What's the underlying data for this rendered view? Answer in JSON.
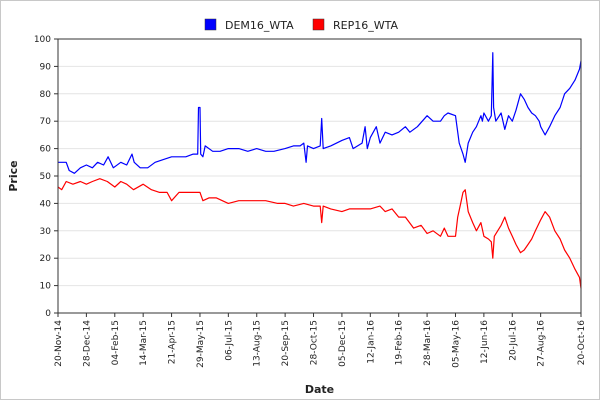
{
  "chart_data": {
    "type": "line",
    "title": "",
    "xlabel": "Date",
    "ylabel": "Price",
    "ylim": [
      0,
      100
    ],
    "yticks": [
      0,
      10,
      20,
      30,
      40,
      50,
      60,
      70,
      80,
      90,
      100
    ],
    "xlim": [
      "2014-11-20",
      "2016-10-20"
    ],
    "xticks": [
      {
        "date": "2014-11-20",
        "label": "20-Nov-14"
      },
      {
        "date": "2014-12-28",
        "label": "28-Dec-14"
      },
      {
        "date": "2015-02-04",
        "label": "04-Feb-15"
      },
      {
        "date": "2015-03-14",
        "label": "14-Mar-15"
      },
      {
        "date": "2015-04-21",
        "label": "21-Apr-15"
      },
      {
        "date": "2015-05-29",
        "label": "29-May-15"
      },
      {
        "date": "2015-07-06",
        "label": "06-Jul-15"
      },
      {
        "date": "2015-08-13",
        "label": "13-Aug-15"
      },
      {
        "date": "2015-09-20",
        "label": "20-Sep-15"
      },
      {
        "date": "2015-10-28",
        "label": "28-Oct-15"
      },
      {
        "date": "2015-12-05",
        "label": "05-Dec-15"
      },
      {
        "date": "2016-01-12",
        "label": "12-Jan-16"
      },
      {
        "date": "2016-02-19",
        "label": "19-Feb-16"
      },
      {
        "date": "2016-03-28",
        "label": "28-Mar-16"
      },
      {
        "date": "2016-05-05",
        "label": "05-May-16"
      },
      {
        "date": "2016-06-12",
        "label": "12-Jun-16"
      },
      {
        "date": "2016-07-20",
        "label": "20-Jul-16"
      },
      {
        "date": "2016-08-27",
        "label": "27-Aug-16"
      },
      {
        "date": "2016-10-20",
        "label": "20-Oct-16"
      }
    ],
    "grid": {
      "horizontal": true,
      "vertical": false
    },
    "legend_position": "top-center",
    "series": [
      {
        "name": "DEM16_WTA",
        "color": "#0000ff",
        "points": [
          [
            "2014-11-20",
            55
          ],
          [
            "2014-12-01",
            55
          ],
          [
            "2014-12-05",
            52
          ],
          [
            "2014-12-12",
            51
          ],
          [
            "2014-12-20",
            53
          ],
          [
            "2014-12-28",
            54
          ],
          [
            "2015-01-05",
            53
          ],
          [
            "2015-01-12",
            55
          ],
          [
            "2015-01-20",
            54
          ],
          [
            "2015-01-26",
            57
          ],
          [
            "2015-02-02",
            53
          ],
          [
            "2015-02-12",
            55
          ],
          [
            "2015-02-20",
            54
          ],
          [
            "2015-02-27",
            58
          ],
          [
            "2015-03-02",
            55
          ],
          [
            "2015-03-10",
            53
          ],
          [
            "2015-03-20",
            53
          ],
          [
            "2015-03-30",
            55
          ],
          [
            "2015-04-10",
            56
          ],
          [
            "2015-04-21",
            57
          ],
          [
            "2015-05-01",
            57
          ],
          [
            "2015-05-10",
            57
          ],
          [
            "2015-05-20",
            58
          ],
          [
            "2015-05-26",
            58
          ],
          [
            "2015-05-27",
            75
          ],
          [
            "2015-05-29",
            75
          ],
          [
            "2015-05-30",
            58
          ],
          [
            "2015-06-02",
            57
          ],
          [
            "2015-06-05",
            61
          ],
          [
            "2015-06-15",
            59
          ],
          [
            "2015-06-25",
            59
          ],
          [
            "2015-07-06",
            60
          ],
          [
            "2015-07-20",
            60
          ],
          [
            "2015-08-01",
            59
          ],
          [
            "2015-08-13",
            60
          ],
          [
            "2015-08-25",
            59
          ],
          [
            "2015-09-05",
            59
          ],
          [
            "2015-09-20",
            60
          ],
          [
            "2015-10-01",
            61
          ],
          [
            "2015-10-10",
            61
          ],
          [
            "2015-10-15",
            62
          ],
          [
            "2015-10-18",
            55
          ],
          [
            "2015-10-20",
            61
          ],
          [
            "2015-10-28",
            60
          ],
          [
            "2015-11-06",
            61
          ],
          [
            "2015-11-08",
            71
          ],
          [
            "2015-11-10",
            60
          ],
          [
            "2015-11-20",
            61
          ],
          [
            "2015-12-05",
            63
          ],
          [
            "2015-12-15",
            64
          ],
          [
            "2015-12-20",
            60
          ],
          [
            "2016-01-01",
            62
          ],
          [
            "2016-01-05",
            68
          ],
          [
            "2016-01-08",
            60
          ],
          [
            "2016-01-12",
            64
          ],
          [
            "2016-01-20",
            68
          ],
          [
            "2016-01-25",
            62
          ],
          [
            "2016-02-01",
            66
          ],
          [
            "2016-02-10",
            65
          ],
          [
            "2016-02-19",
            66
          ],
          [
            "2016-02-28",
            68
          ],
          [
            "2016-03-05",
            66
          ],
          [
            "2016-03-15",
            68
          ],
          [
            "2016-03-28",
            72
          ],
          [
            "2016-04-05",
            70
          ],
          [
            "2016-04-15",
            70
          ],
          [
            "2016-04-20",
            72
          ],
          [
            "2016-04-25",
            73
          ],
          [
            "2016-05-05",
            72
          ],
          [
            "2016-05-10",
            62
          ],
          [
            "2016-05-15",
            58
          ],
          [
            "2016-05-18",
            55
          ],
          [
            "2016-05-22",
            62
          ],
          [
            "2016-05-28",
            66
          ],
          [
            "2016-06-02",
            68
          ],
          [
            "2016-06-08",
            72
          ],
          [
            "2016-06-10",
            70
          ],
          [
            "2016-06-12",
            73
          ],
          [
            "2016-06-18",
            70
          ],
          [
            "2016-06-22",
            72
          ],
          [
            "2016-06-24",
            95
          ],
          [
            "2016-06-25",
            75
          ],
          [
            "2016-06-28",
            70
          ],
          [
            "2016-07-05",
            73
          ],
          [
            "2016-07-10",
            67
          ],
          [
            "2016-07-15",
            72
          ],
          [
            "2016-07-20",
            70
          ],
          [
            "2016-07-25",
            74
          ],
          [
            "2016-07-31",
            80
          ],
          [
            "2016-08-05",
            78
          ],
          [
            "2016-08-10",
            75
          ],
          [
            "2016-08-15",
            73
          ],
          [
            "2016-08-20",
            72
          ],
          [
            "2016-08-25",
            70
          ],
          [
            "2016-08-27",
            68
          ],
          [
            "2016-09-02",
            65
          ],
          [
            "2016-09-08",
            68
          ],
          [
            "2016-09-15",
            72
          ],
          [
            "2016-09-22",
            75
          ],
          [
            "2016-09-28",
            80
          ],
          [
            "2016-10-05",
            82
          ],
          [
            "2016-10-12",
            85
          ],
          [
            "2016-10-18",
            89
          ],
          [
            "2016-10-20",
            92
          ]
        ]
      },
      {
        "name": "REP16_WTA",
        "color": "#ff0000",
        "points": [
          [
            "2014-11-20",
            46
          ],
          [
            "2014-11-25",
            45
          ],
          [
            "2014-12-01",
            48
          ],
          [
            "2014-12-10",
            47
          ],
          [
            "2014-12-20",
            48
          ],
          [
            "2014-12-28",
            47
          ],
          [
            "2015-01-05",
            48
          ],
          [
            "2015-01-15",
            49
          ],
          [
            "2015-01-25",
            48
          ],
          [
            "2015-02-04",
            46
          ],
          [
            "2015-02-12",
            48
          ],
          [
            "2015-02-20",
            47
          ],
          [
            "2015-03-01",
            45
          ],
          [
            "2015-03-14",
            47
          ],
          [
            "2015-03-25",
            45
          ],
          [
            "2015-04-05",
            44
          ],
          [
            "2015-04-15",
            44
          ],
          [
            "2015-04-21",
            41
          ],
          [
            "2015-05-01",
            44
          ],
          [
            "2015-05-10",
            44
          ],
          [
            "2015-05-20",
            44
          ],
          [
            "2015-05-29",
            44
          ],
          [
            "2015-06-02",
            41
          ],
          [
            "2015-06-10",
            42
          ],
          [
            "2015-06-20",
            42
          ],
          [
            "2015-07-06",
            40
          ],
          [
            "2015-07-20",
            41
          ],
          [
            "2015-08-13",
            41
          ],
          [
            "2015-08-25",
            41
          ],
          [
            "2015-09-10",
            40
          ],
          [
            "2015-09-20",
            40
          ],
          [
            "2015-10-01",
            39
          ],
          [
            "2015-10-15",
            40
          ],
          [
            "2015-10-28",
            39
          ],
          [
            "2015-11-06",
            39
          ],
          [
            "2015-11-08",
            33
          ],
          [
            "2015-11-10",
            39
          ],
          [
            "2015-11-20",
            38
          ],
          [
            "2015-12-05",
            37
          ],
          [
            "2015-12-15",
            38
          ],
          [
            "2016-01-01",
            38
          ],
          [
            "2016-01-12",
            38
          ],
          [
            "2016-01-25",
            39
          ],
          [
            "2016-02-01",
            37
          ],
          [
            "2016-02-10",
            38
          ],
          [
            "2016-02-19",
            35
          ],
          [
            "2016-02-28",
            35
          ],
          [
            "2016-03-10",
            31
          ],
          [
            "2016-03-20",
            32
          ],
          [
            "2016-03-28",
            29
          ],
          [
            "2016-04-05",
            30
          ],
          [
            "2016-04-15",
            28
          ],
          [
            "2016-04-20",
            31
          ],
          [
            "2016-04-25",
            28
          ],
          [
            "2016-05-05",
            28
          ],
          [
            "2016-05-08",
            35
          ],
          [
            "2016-05-12",
            40
          ],
          [
            "2016-05-15",
            44
          ],
          [
            "2016-05-18",
            45
          ],
          [
            "2016-05-22",
            37
          ],
          [
            "2016-05-28",
            33
          ],
          [
            "2016-06-02",
            30
          ],
          [
            "2016-06-08",
            33
          ],
          [
            "2016-06-12",
            28
          ],
          [
            "2016-06-18",
            27
          ],
          [
            "2016-06-22",
            26
          ],
          [
            "2016-06-24",
            20
          ],
          [
            "2016-06-26",
            28
          ],
          [
            "2016-07-05",
            32
          ],
          [
            "2016-07-10",
            35
          ],
          [
            "2016-07-15",
            31
          ],
          [
            "2016-07-20",
            28
          ],
          [
            "2016-07-25",
            25
          ],
          [
            "2016-07-31",
            22
          ],
          [
            "2016-08-05",
            23
          ],
          [
            "2016-08-10",
            25
          ],
          [
            "2016-08-15",
            27
          ],
          [
            "2016-08-20",
            30
          ],
          [
            "2016-08-27",
            34
          ],
          [
            "2016-09-02",
            37
          ],
          [
            "2016-09-08",
            35
          ],
          [
            "2016-09-15",
            30
          ],
          [
            "2016-09-22",
            27
          ],
          [
            "2016-09-28",
            23
          ],
          [
            "2016-10-05",
            20
          ],
          [
            "2016-10-12",
            16
          ],
          [
            "2016-10-18",
            13
          ],
          [
            "2016-10-20",
            9
          ]
        ]
      }
    ]
  }
}
